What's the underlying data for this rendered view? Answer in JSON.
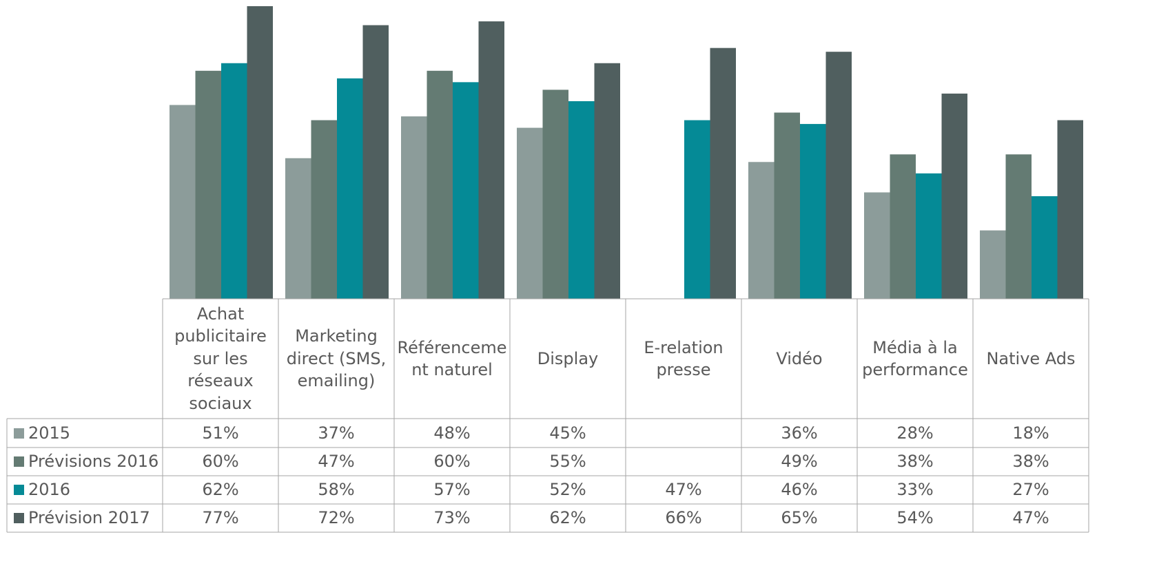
{
  "chart_data": {
    "type": "bar",
    "categories": [
      "Achat publicitaire sur les réseaux sociaux",
      "Marketing direct (SMS, emailing)",
      "Référencement naturel",
      "Display",
      "E-relation presse",
      "Vidéo",
      "Média à la performance",
      "Native Ads"
    ],
    "series": [
      {
        "name": "2015",
        "color": "#8c9c9a",
        "values": [
          51,
          37,
          48,
          45,
          null,
          36,
          28,
          18
        ],
        "value_labels": [
          "51%",
          "37%",
          "48%",
          "45%",
          null,
          "36%",
          "28%",
          "18%"
        ]
      },
      {
        "name": "Prévisions 2016",
        "color": "#647b73",
        "values": [
          60,
          47,
          60,
          55,
          null,
          49,
          38,
          38
        ],
        "value_labels": [
          "60%",
          "47%",
          "60%",
          "55%",
          null,
          "49%",
          "38%",
          "38%"
        ]
      },
      {
        "name": "2016",
        "color": "#058a96",
        "values": [
          62,
          58,
          57,
          52,
          47,
          46,
          33,
          27
        ],
        "value_labels": [
          "62%",
          "58%",
          "57%",
          "52%",
          "47%",
          "46%",
          "33%",
          "27%"
        ]
      },
      {
        "name": "Prévision 2017",
        "color": "#505f5f",
        "values": [
          77,
          72,
          73,
          62,
          66,
          65,
          54,
          47
        ],
        "value_labels": [
          "77%",
          "72%",
          "73%",
          "62%",
          "66%",
          "65%",
          "54%",
          "47%"
        ]
      }
    ],
    "ylim": [
      0,
      80
    ]
  }
}
